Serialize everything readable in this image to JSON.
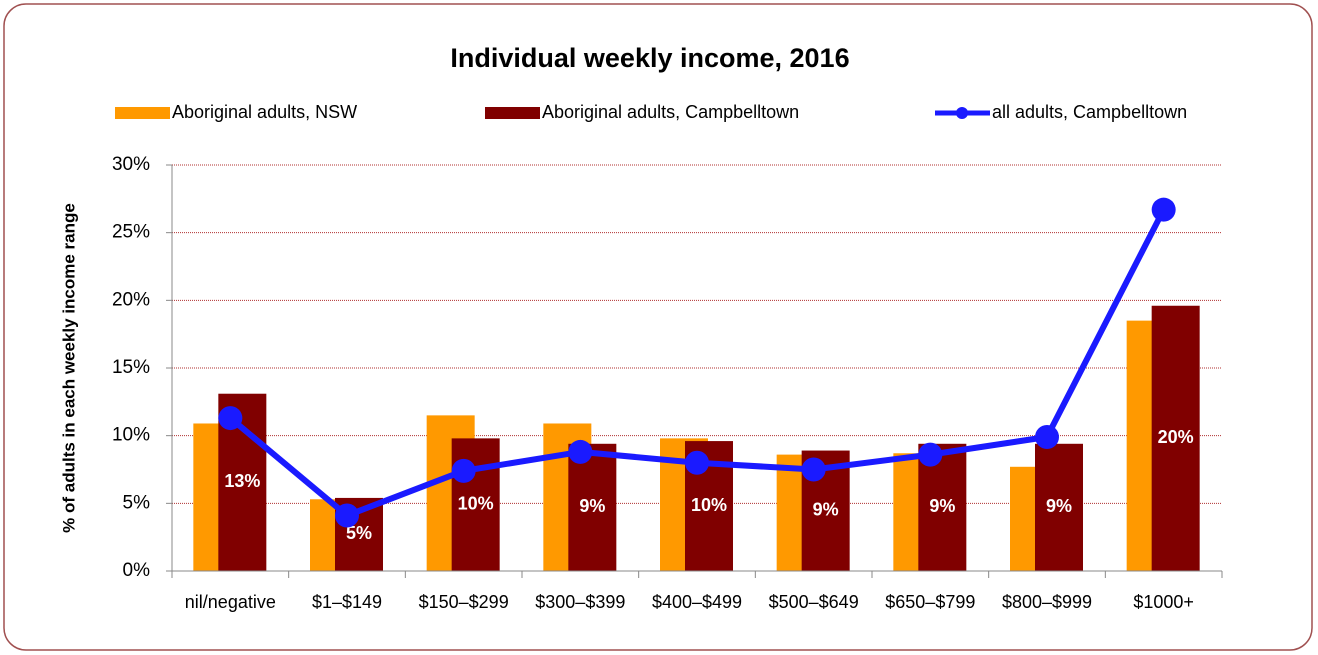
{
  "chart_data": {
    "type": "bar",
    "title": "Individual weekly income, 2016",
    "y_label": "% of adults in each weekly income range",
    "categories": [
      "nil/negative",
      "$1–$149",
      "$150–$299",
      "$300–$399",
      "$400–$499",
      "$500–$649",
      "$650–$799",
      "$800–$999",
      "$1000+"
    ],
    "series": [
      {
        "name": "Aboriginal adults, NSW",
        "type": "bar",
        "color": "#ff9900",
        "values": [
          10.9,
          5.3,
          11.5,
          10.9,
          9.8,
          8.6,
          8.7,
          7.7,
          18.5
        ]
      },
      {
        "name": "Aboriginal adults, Campbelltown",
        "type": "bar",
        "color": "#800000",
        "values": [
          13.1,
          5.4,
          9.8,
          9.4,
          9.6,
          8.9,
          9.4,
          9.4,
          19.6
        ],
        "value_labels": [
          "13%",
          "5%",
          "10%",
          "9%",
          "10%",
          "9%",
          "9%",
          "9%",
          "20%"
        ]
      },
      {
        "name": "all adults, Campbelltown",
        "type": "line",
        "color": "#1a1aff",
        "values": [
          11.3,
          4.1,
          7.4,
          8.8,
          8.0,
          7.5,
          8.6,
          9.9,
          26.7
        ]
      }
    ],
    "ylim": [
      0,
      30
    ],
    "yticks": [
      {
        "value": 0,
        "label": "0%"
      },
      {
        "value": 5,
        "label": "5%"
      },
      {
        "value": 10,
        "label": "10%"
      },
      {
        "value": 15,
        "label": "15%"
      },
      {
        "value": 20,
        "label": "20%"
      },
      {
        "value": 25,
        "label": "25%"
      },
      {
        "value": 30,
        "label": "30%"
      }
    ],
    "grid": true,
    "legend": "top"
  }
}
